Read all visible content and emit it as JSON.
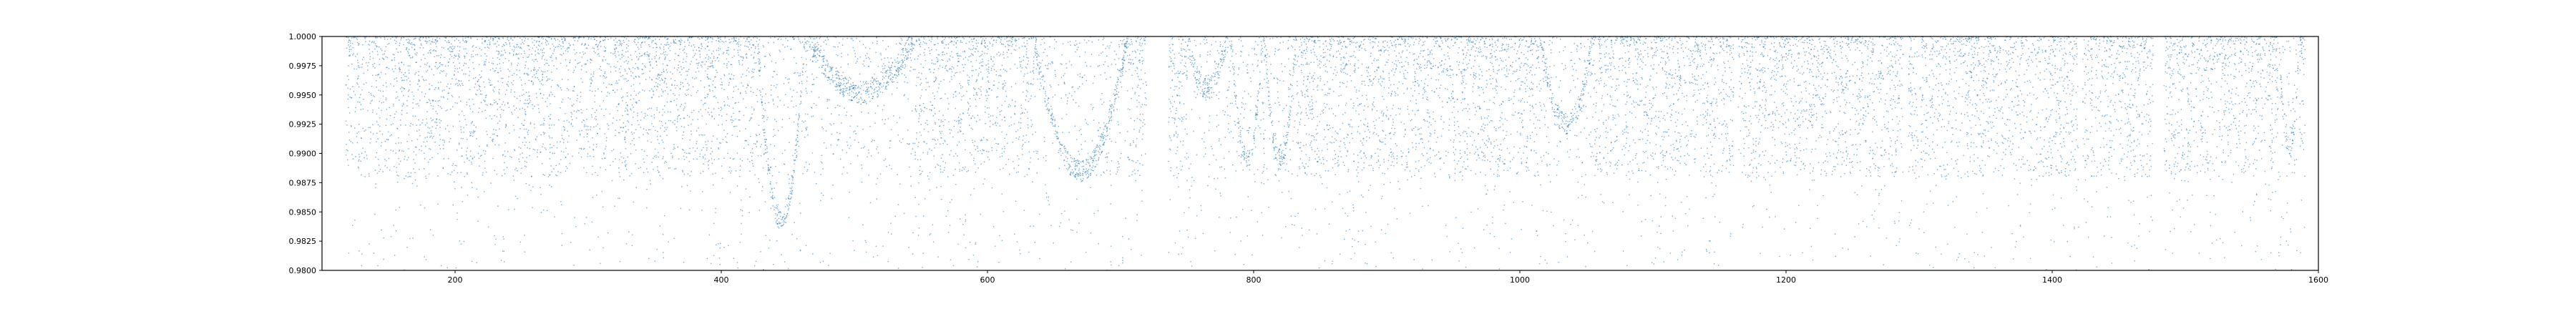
{
  "chart_data": {
    "type": "scatter",
    "title": "",
    "xlabel": "",
    "ylabel": "",
    "xlim": [
      100,
      1600
    ],
    "ylim": [
      0.98,
      1.0
    ],
    "x_ticks": [
      200,
      400,
      600,
      800,
      1000,
      1200,
      1400,
      1600
    ],
    "y_ticks": [
      0.98,
      0.9825,
      0.985,
      0.9875,
      0.99,
      0.9925,
      0.995,
      0.9975,
      1.0
    ],
    "x_tick_labels": [
      "200",
      "400",
      "600",
      "800",
      "1000",
      "1200",
      "1400",
      "1600"
    ],
    "y_tick_labels": [
      "0.9800",
      "0.9825",
      "0.9850",
      "0.9875",
      "0.9900",
      "0.9925",
      "0.9950",
      "0.9975",
      "1.0000"
    ],
    "grid": false,
    "legend": "none",
    "marker_color": "#1f77b4",
    "series": [
      {
        "x_range": [
          118,
          1590
        ],
        "y_range": [
          0.98,
          1.0
        ],
        "approx_point_count": 14000,
        "gaps_x": [
          [
            720,
            736
          ],
          [
            1161,
            1164
          ],
          [
            1288,
            1292
          ],
          [
            1420,
            1423
          ],
          [
            1476,
            1484
          ]
        ],
        "dip_features": [
          {
            "x_center": 445,
            "x_width": 18,
            "y_min": 0.9842
          },
          {
            "x_center": 505,
            "x_width": 40,
            "y_min": 0.9952
          },
          {
            "x_center": 670,
            "x_width": 35,
            "y_min": 0.9885
          },
          {
            "x_center": 765,
            "x_width": 15,
            "y_min": 0.9955
          },
          {
            "x_center": 795,
            "x_width": 12,
            "y_min": 0.9895
          },
          {
            "x_center": 820,
            "x_width": 12,
            "y_min": 0.9895
          },
          {
            "x_center": 1035,
            "x_width": 20,
            "y_min": 0.9925
          },
          {
            "x_center": 1578,
            "x_width": 8,
            "y_min": 0.9905
          }
        ]
      }
    ]
  }
}
